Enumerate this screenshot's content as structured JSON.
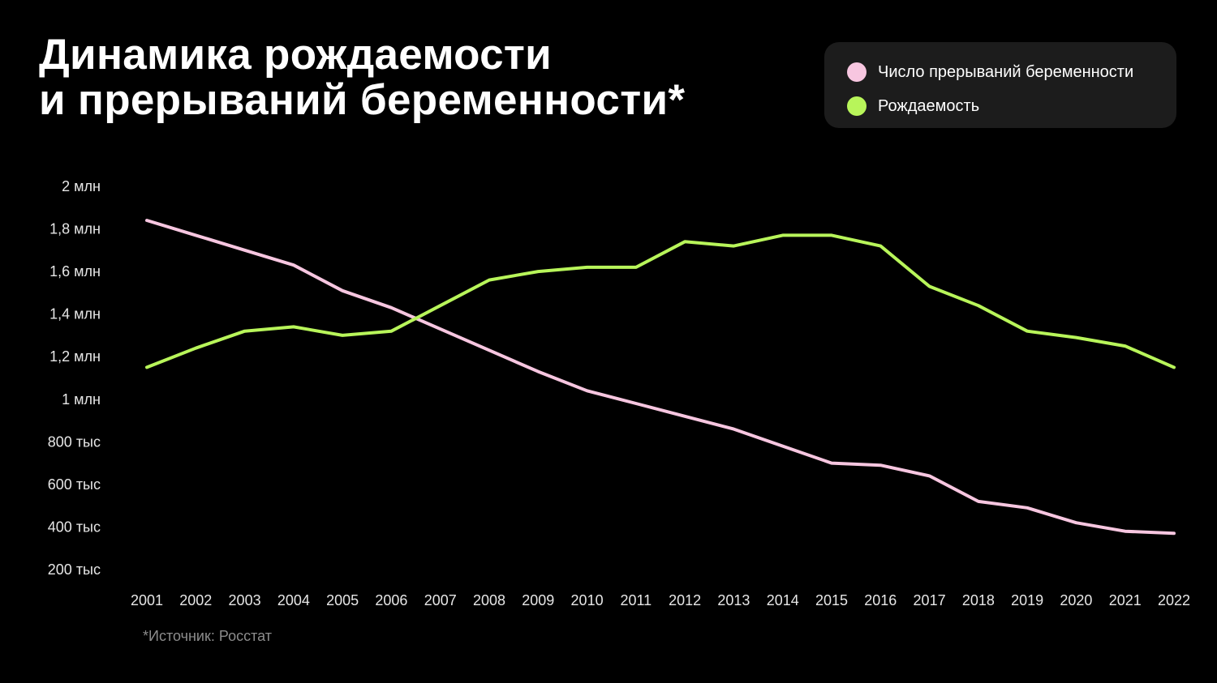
{
  "chart_data": {
    "type": "line",
    "title": [
      "Динамика рождаемости",
      "и прерываний беременности*"
    ],
    "x": [
      "2001",
      "2002",
      "2003",
      "2004",
      "2005",
      "2006",
      "2007",
      "2008",
      "2009",
      "2010",
      "2011",
      "2012",
      "2013",
      "2014",
      "2015",
      "2016",
      "2017",
      "2018",
      "2019",
      "2020",
      "2021",
      "2022"
    ],
    "yticks": [
      {
        "value": 200000,
        "label": "200 тыс"
      },
      {
        "value": 400000,
        "label": "400 тыс"
      },
      {
        "value": 600000,
        "label": "600 тыс"
      },
      {
        "value": 800000,
        "label": "800 тыс"
      },
      {
        "value": 1000000,
        "label": "1 млн"
      },
      {
        "value": 1200000,
        "label": "1,2 млн"
      },
      {
        "value": 1400000,
        "label": "1,4 млн"
      },
      {
        "value": 1600000,
        "label": "1,6 млн"
      },
      {
        "value": 1800000,
        "label": "1,8 млн"
      },
      {
        "value": 2000000,
        "label": "2 млн"
      }
    ],
    "ylim": [
      200000,
      2000000
    ],
    "grid": false,
    "legend_position": "top-right",
    "series": [
      {
        "name": "Число прерываний беременности",
        "color": "#f7c6e0",
        "values": [
          1840000,
          1770000,
          1700000,
          1630000,
          1510000,
          1430000,
          1330000,
          1230000,
          1130000,
          1040000,
          980000,
          920000,
          860000,
          780000,
          700000,
          690000,
          640000,
          520000,
          490000,
          420000,
          380000,
          370000
        ]
      },
      {
        "name": "Рождаемость",
        "color": "#b8f55a",
        "values": [
          1150000,
          1240000,
          1320000,
          1340000,
          1300000,
          1320000,
          1440000,
          1560000,
          1600000,
          1620000,
          1620000,
          1740000,
          1720000,
          1770000,
          1770000,
          1720000,
          1530000,
          1440000,
          1320000,
          1290000,
          1250000,
          1150000
        ]
      }
    ]
  },
  "source_note": "*Источник: Росстат"
}
